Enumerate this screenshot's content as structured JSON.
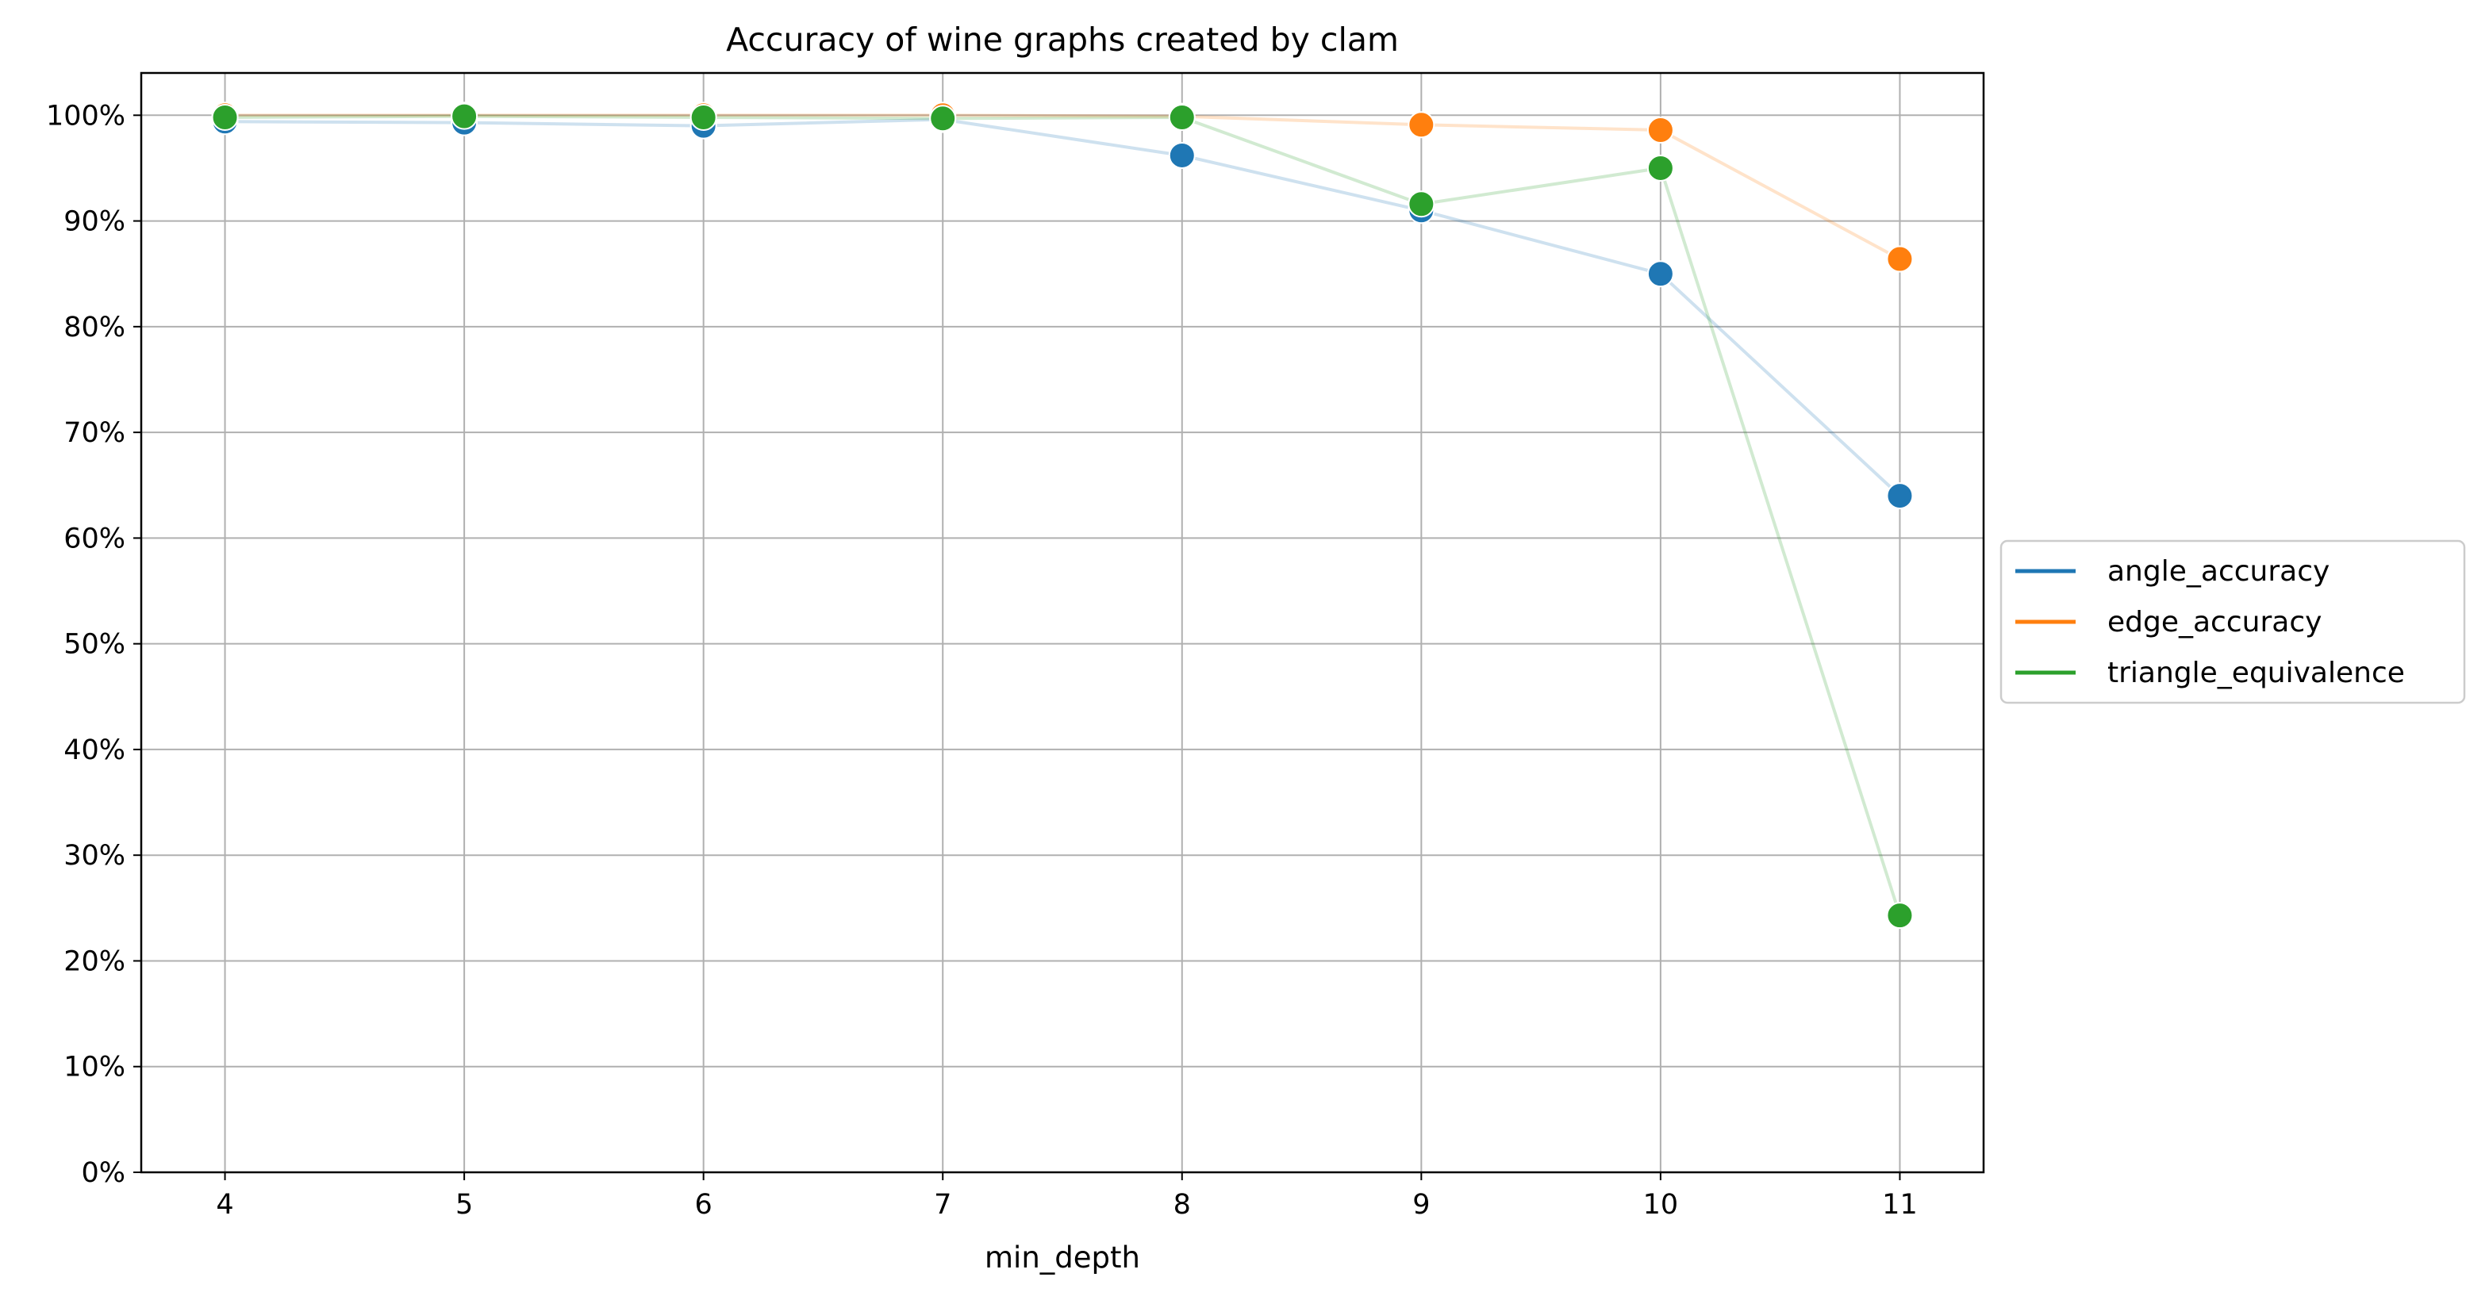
{
  "chart_data": {
    "type": "line",
    "title": "Accuracy of wine graphs created by clam",
    "xlabel": "min_depth",
    "ylabel": "",
    "x": [
      4,
      5,
      6,
      7,
      8,
      9,
      10,
      11
    ],
    "xlim": [
      3.65,
      11.35
    ],
    "ylim": [
      0,
      1.04
    ],
    "y_ticks": [
      0,
      0.1,
      0.2,
      0.3,
      0.4,
      0.5,
      0.6,
      0.7,
      0.8,
      0.9,
      1.0
    ],
    "y_tick_labels": [
      "0%",
      "10%",
      "20%",
      "30%",
      "40%",
      "50%",
      "60%",
      "70%",
      "80%",
      "90%",
      "100%"
    ],
    "x_tick_labels": [
      "4",
      "5",
      "6",
      "7",
      "8",
      "9",
      "10",
      "11"
    ],
    "grid": true,
    "legend_position": "right, outside plot",
    "series": [
      {
        "name": "angle_accuracy",
        "color": "#1f77b4",
        "values": [
          0.994,
          0.993,
          0.99,
          0.996,
          0.962,
          0.91,
          0.85,
          0.64
        ]
      },
      {
        "name": "edge_accuracy",
        "color": "#ff7f0e",
        "values": [
          1.0,
          1.0,
          1.0,
          1.0,
          0.999,
          0.991,
          0.986,
          0.864
        ]
      },
      {
        "name": "triangle_equivalence",
        "color": "#2ca02c",
        "values": [
          0.998,
          0.999,
          0.998,
          0.997,
          0.998,
          0.916,
          0.95,
          0.243
        ]
      }
    ]
  }
}
